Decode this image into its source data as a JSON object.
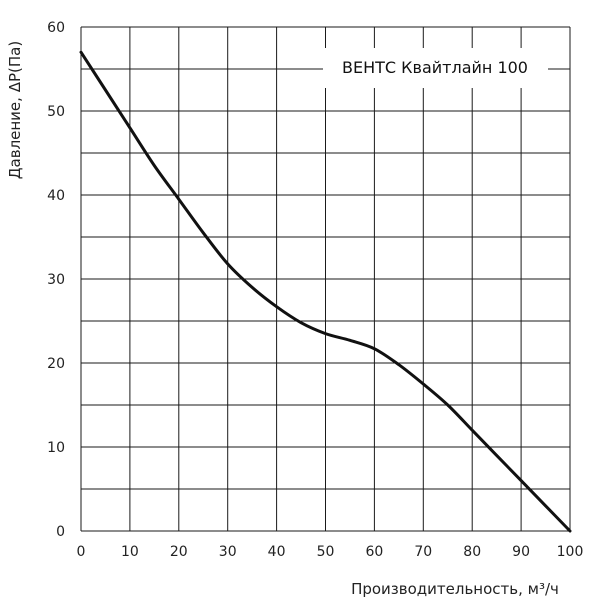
{
  "chart_data": {
    "type": "line",
    "title": "",
    "xlabel": "Производительность, м³/ч",
    "ylabel": "Давление, ΔP(Па)",
    "xlim": [
      0,
      100
    ],
    "ylim": [
      0,
      60
    ],
    "x_ticks": [
      0,
      10,
      20,
      30,
      40,
      50,
      60,
      70,
      80,
      90,
      100
    ],
    "y_ticks": [
      0,
      10,
      20,
      30,
      40,
      50,
      60
    ],
    "y_minor_step": 5,
    "grid": true,
    "legend_position": "top-right",
    "series": [
      {
        "name": "ВЕНТС Квайтлайн 100",
        "color": "#111111",
        "x": [
          0,
          5,
          10,
          15,
          20,
          25,
          30,
          35,
          40,
          45,
          50,
          55,
          60,
          65,
          70,
          75,
          80,
          85,
          90,
          95,
          100
        ],
        "y": [
          57,
          52.5,
          48,
          43.5,
          39.5,
          35.5,
          31.8,
          29,
          26.7,
          24.8,
          23.5,
          22.7,
          21.7,
          19.8,
          17.5,
          15,
          12,
          9,
          6,
          3,
          0
        ]
      }
    ]
  }
}
